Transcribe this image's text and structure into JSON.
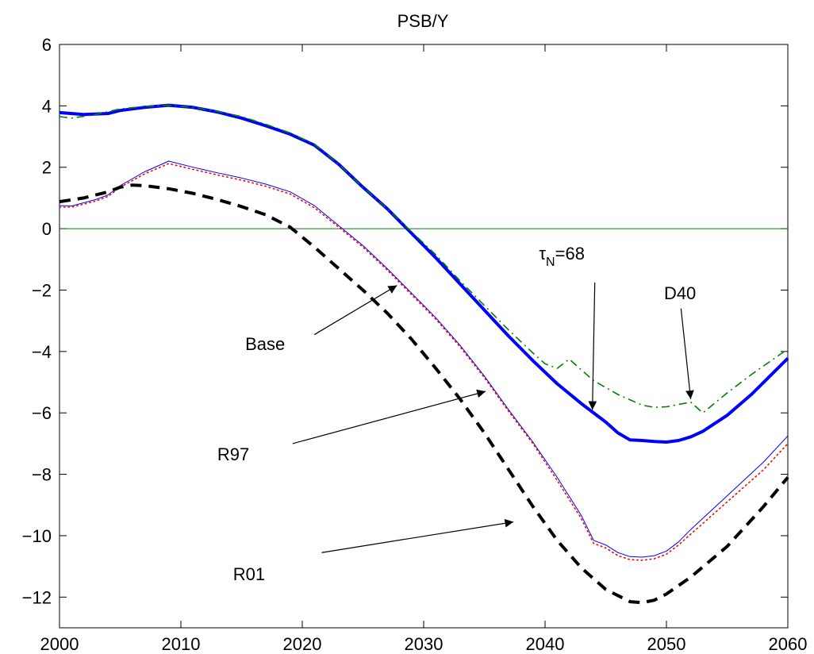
{
  "chart_data": {
    "type": "line",
    "title": "PSB/Y",
    "xlabel": "",
    "ylabel": "",
    "xlim": [
      2000,
      2060
    ],
    "ylim": [
      -13,
      6
    ],
    "x_ticks": [
      2000,
      2010,
      2020,
      2030,
      2040,
      2050,
      2060
    ],
    "y_ticks": [
      6,
      4,
      2,
      0,
      -2,
      -4,
      -6,
      -8,
      -10,
      -12
    ],
    "grid": false,
    "reference_line": {
      "y": 0,
      "color": "#008000"
    },
    "series": [
      {
        "key": "tauN68",
        "color": "#0000ff",
        "style": "solid",
        "width": "thick",
        "points": [
          [
            2000,
            3.78
          ],
          [
            2002,
            3.72
          ],
          [
            2004,
            3.75
          ],
          [
            2005,
            3.85
          ],
          [
            2007,
            3.95
          ],
          [
            2009,
            4.02
          ],
          [
            2011,
            3.95
          ],
          [
            2013,
            3.8
          ],
          [
            2015,
            3.6
          ],
          [
            2017,
            3.35
          ],
          [
            2019,
            3.08
          ],
          [
            2021,
            2.72
          ],
          [
            2023,
            2.1
          ],
          [
            2025,
            1.35
          ],
          [
            2027,
            0.65
          ],
          [
            2029,
            -0.15
          ],
          [
            2031,
            -0.95
          ],
          [
            2033,
            -1.8
          ],
          [
            2035,
            -2.65
          ],
          [
            2037,
            -3.5
          ],
          [
            2039,
            -4.3
          ],
          [
            2041,
            -5.05
          ],
          [
            2043,
            -5.7
          ],
          [
            2045,
            -6.3
          ],
          [
            2046,
            -6.65
          ],
          [
            2047,
            -6.88
          ],
          [
            2048,
            -6.9
          ],
          [
            2049,
            -6.93
          ],
          [
            2050,
            -6.95
          ],
          [
            2051,
            -6.9
          ],
          [
            2052,
            -6.78
          ],
          [
            2053,
            -6.6
          ],
          [
            2055,
            -6.08
          ],
          [
            2057,
            -5.4
          ],
          [
            2060,
            -4.22
          ]
        ]
      },
      {
        "key": "D40",
        "color": "#008000",
        "style": "dashdot",
        "width": "normal",
        "points": [
          [
            2000,
            3.65
          ],
          [
            2001,
            3.6
          ],
          [
            2003,
            3.72
          ],
          [
            2005,
            3.9
          ],
          [
            2007,
            3.98
          ],
          [
            2009,
            4.02
          ],
          [
            2011,
            3.95
          ],
          [
            2013,
            3.82
          ],
          [
            2015,
            3.65
          ],
          [
            2017,
            3.4
          ],
          [
            2019,
            3.12
          ],
          [
            2021,
            2.75
          ],
          [
            2023,
            2.1
          ],
          [
            2025,
            1.35
          ],
          [
            2027,
            0.65
          ],
          [
            2029,
            -0.1
          ],
          [
            2031,
            -0.85
          ],
          [
            2033,
            -1.7
          ],
          [
            2035,
            -2.5
          ],
          [
            2037,
            -3.3
          ],
          [
            2039,
            -4.05
          ],
          [
            2040,
            -4.4
          ],
          [
            2041,
            -4.55
          ],
          [
            2042,
            -4.25
          ],
          [
            2043,
            -4.6
          ],
          [
            2044,
            -4.95
          ],
          [
            2046,
            -5.4
          ],
          [
            2048,
            -5.75
          ],
          [
            2049,
            -5.82
          ],
          [
            2050,
            -5.8
          ],
          [
            2052,
            -5.65
          ],
          [
            2053,
            -6.0
          ],
          [
            2055,
            -5.35
          ],
          [
            2057,
            -4.75
          ],
          [
            2060,
            -3.92
          ]
        ]
      },
      {
        "key": "Base",
        "color": "#0000ff",
        "style": "solid",
        "width": "thin",
        "points": [
          [
            2000,
            0.75
          ],
          [
            2001,
            0.74
          ],
          [
            2003,
            0.95
          ],
          [
            2004,
            1.1
          ],
          [
            2005,
            1.4
          ],
          [
            2007,
            1.85
          ],
          [
            2009,
            2.2
          ],
          [
            2011,
            2.0
          ],
          [
            2013,
            1.82
          ],
          [
            2015,
            1.65
          ],
          [
            2017,
            1.45
          ],
          [
            2019,
            1.2
          ],
          [
            2021,
            0.75
          ],
          [
            2023,
            0.1
          ],
          [
            2025,
            -0.55
          ],
          [
            2027,
            -1.3
          ],
          [
            2029,
            -2.1
          ],
          [
            2031,
            -2.9
          ],
          [
            2033,
            -3.8
          ],
          [
            2035,
            -4.8
          ],
          [
            2037,
            -5.9
          ],
          [
            2039,
            -6.95
          ],
          [
            2041,
            -8.1
          ],
          [
            2043,
            -9.35
          ],
          [
            2044,
            -10.15
          ],
          [
            2045,
            -10.3
          ],
          [
            2046,
            -10.55
          ],
          [
            2047,
            -10.68
          ],
          [
            2048,
            -10.7
          ],
          [
            2049,
            -10.65
          ],
          [
            2050,
            -10.5
          ],
          [
            2051,
            -10.2
          ],
          [
            2052,
            -9.8
          ],
          [
            2055,
            -8.7
          ],
          [
            2058,
            -7.6
          ],
          [
            2060,
            -6.75
          ]
        ]
      },
      {
        "key": "R97",
        "color": "#ff0000",
        "style": "dotted",
        "width": "normal",
        "points": [
          [
            2000,
            0.7
          ],
          [
            2001,
            0.7
          ],
          [
            2003,
            0.9
          ],
          [
            2004,
            1.05
          ],
          [
            2005,
            1.35
          ],
          [
            2007,
            1.78
          ],
          [
            2009,
            2.12
          ],
          [
            2011,
            1.93
          ],
          [
            2013,
            1.75
          ],
          [
            2015,
            1.58
          ],
          [
            2017,
            1.38
          ],
          [
            2019,
            1.13
          ],
          [
            2021,
            0.68
          ],
          [
            2023,
            0.05
          ],
          [
            2025,
            -0.6
          ],
          [
            2027,
            -1.35
          ],
          [
            2029,
            -2.15
          ],
          [
            2031,
            -2.95
          ],
          [
            2033,
            -3.85
          ],
          [
            2035,
            -4.85
          ],
          [
            2037,
            -5.95
          ],
          [
            2039,
            -7.0
          ],
          [
            2041,
            -8.2
          ],
          [
            2043,
            -9.45
          ],
          [
            2044,
            -10.25
          ],
          [
            2045,
            -10.4
          ],
          [
            2046,
            -10.65
          ],
          [
            2047,
            -10.78
          ],
          [
            2048,
            -10.8
          ],
          [
            2049,
            -10.75
          ],
          [
            2050,
            -10.6
          ],
          [
            2051,
            -10.3
          ],
          [
            2052,
            -9.95
          ],
          [
            2055,
            -8.9
          ],
          [
            2058,
            -7.85
          ],
          [
            2060,
            -7.0
          ]
        ]
      },
      {
        "key": "R01",
        "color": "#000000",
        "style": "dashed",
        "width": "thick",
        "points": [
          [
            2000,
            0.88
          ],
          [
            2002,
            1.0
          ],
          [
            2004,
            1.2
          ],
          [
            2005,
            1.35
          ],
          [
            2006,
            1.42
          ],
          [
            2007,
            1.4
          ],
          [
            2009,
            1.3
          ],
          [
            2011,
            1.15
          ],
          [
            2013,
            0.95
          ],
          [
            2015,
            0.72
          ],
          [
            2017,
            0.45
          ],
          [
            2019,
            0.05
          ],
          [
            2021,
            -0.6
          ],
          [
            2023,
            -1.3
          ],
          [
            2025,
            -2.0
          ],
          [
            2027,
            -2.75
          ],
          [
            2029,
            -3.6
          ],
          [
            2031,
            -4.55
          ],
          [
            2033,
            -5.55
          ],
          [
            2035,
            -6.65
          ],
          [
            2037,
            -7.85
          ],
          [
            2039,
            -9.05
          ],
          [
            2041,
            -10.15
          ],
          [
            2043,
            -11.05
          ],
          [
            2045,
            -11.75
          ],
          [
            2047,
            -12.15
          ],
          [
            2048,
            -12.18
          ],
          [
            2049,
            -12.1
          ],
          [
            2050,
            -11.9
          ],
          [
            2052,
            -11.35
          ],
          [
            2055,
            -10.35
          ],
          [
            2058,
            -9.05
          ],
          [
            2060,
            -8.1
          ]
        ]
      }
    ],
    "annotations": [
      {
        "key": "tau",
        "base": "τ",
        "sub": "N",
        "suffix": "=68",
        "text_at": [
          2039.5,
          -1.0
        ],
        "arrow_from": [
          2044.1,
          -1.75
        ],
        "arrow_to": [
          2043.9,
          -5.9
        ]
      },
      {
        "key": "D40",
        "text": "D40",
        "text_at": [
          2049.8,
          -2.3
        ],
        "arrow_from": [
          2051.2,
          -2.6
        ],
        "arrow_to": [
          2052.0,
          -5.55
        ]
      },
      {
        "key": "Base",
        "text": "Base",
        "text_at": [
          2015.3,
          -3.95
        ],
        "arrow_from": [
          2021.0,
          -3.45
        ],
        "arrow_to": [
          2027.8,
          -1.85
        ]
      },
      {
        "key": "R97",
        "text": "R97",
        "text_at": [
          2013.0,
          -7.55
        ],
        "arrow_from": [
          2019.2,
          -7.0
        ],
        "arrow_to": [
          2035.1,
          -5.3
        ]
      },
      {
        "key": "R01",
        "text": "R01",
        "text_at": [
          2014.3,
          -11.45
        ],
        "arrow_from": [
          2021.6,
          -10.55
        ],
        "arrow_to": [
          2037.4,
          -9.55
        ]
      }
    ]
  }
}
